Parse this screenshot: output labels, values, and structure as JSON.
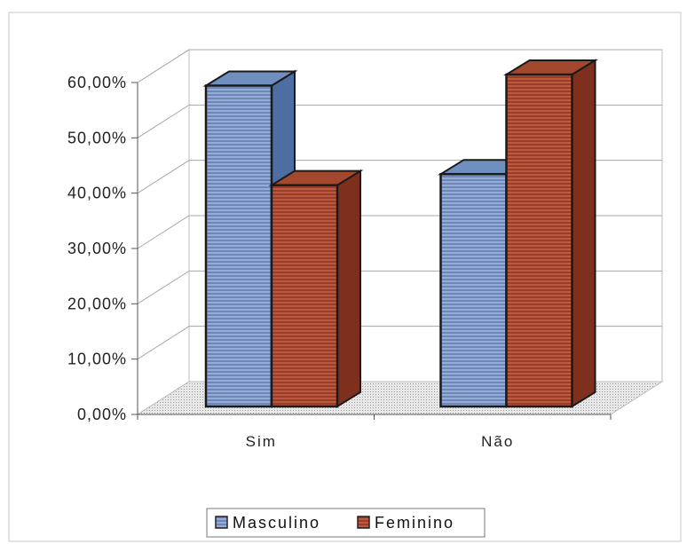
{
  "chart_data": {
    "type": "bar",
    "categories": [
      "Sim",
      "Não"
    ],
    "series": [
      {
        "name": "Masculino",
        "values": [
          58.0,
          42.0
        ],
        "color": "#8fa9d6"
      },
      {
        "name": "Feminino",
        "values": [
          40.0,
          60.0
        ],
        "color": "#b5523a"
      }
    ],
    "ylim": [
      0,
      60
    ],
    "yticks": [
      "0,00%",
      "10,00%",
      "20,00%",
      "30,00%",
      "40,00%",
      "50,00%",
      "60,00%"
    ],
    "grid": true,
    "legend_position": "bottom",
    "style": "3d-clustered-column"
  }
}
